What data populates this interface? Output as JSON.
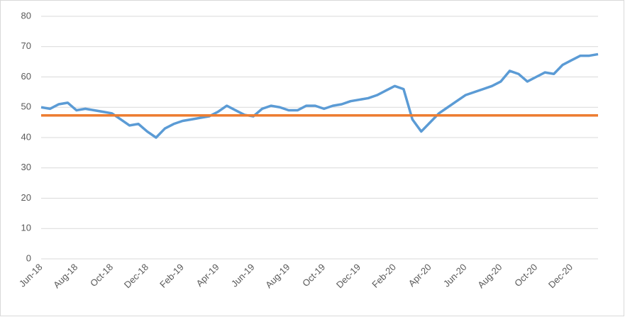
{
  "chart_data": {
    "type": "line",
    "categories": [
      "Jun-18",
      null,
      null,
      null,
      "Aug-18",
      null,
      null,
      null,
      "Oct-18",
      null,
      null,
      null,
      "Dec-18",
      null,
      null,
      null,
      "Feb-19",
      null,
      null,
      null,
      "Apr-19",
      null,
      null,
      null,
      "Jun-19",
      null,
      null,
      null,
      "Aug-19",
      null,
      null,
      null,
      "Oct-19",
      null,
      null,
      null,
      "Dec-19",
      null,
      null,
      null,
      "Feb-20",
      null,
      null,
      null,
      "Apr-20",
      null,
      null,
      null,
      "Jun-20",
      null,
      null,
      null,
      "Aug-20",
      null,
      null,
      null,
      "Oct-20",
      null,
      null,
      null,
      "Dec-20",
      null,
      null,
      null
    ],
    "series": [
      {
        "color": "#5b9bd5",
        "values": [
          50,
          49.5,
          51,
          51.5,
          49,
          49.5,
          49,
          48.5,
          48,
          46,
          44,
          44.5,
          42,
          40,
          43,
          44.5,
          45.5,
          46,
          46.5,
          47,
          48.5,
          50.5,
          49,
          47.5,
          47,
          49.5,
          50.5,
          50,
          49,
          49,
          50.5,
          50.5,
          49.5,
          50.5,
          51,
          52,
          52.5,
          53,
          54,
          55.5,
          57,
          56,
          46,
          42,
          45,
          48,
          50,
          52,
          54,
          55,
          56,
          57,
          58.5,
          62,
          61,
          58.5,
          60,
          61.5,
          61,
          64,
          65.5,
          67,
          67,
          67.5
        ]
      },
      {
        "color": "#ed7d31",
        "values": [
          47.3,
          47.3,
          47.3,
          47.3,
          47.3,
          47.3,
          47.3,
          47.3,
          47.3,
          47.3,
          47.3,
          47.3,
          47.3,
          47.3,
          47.3,
          47.3,
          47.3,
          47.3,
          47.3,
          47.3,
          47.3,
          47.3,
          47.3,
          47.3,
          47.3,
          47.3,
          47.3,
          47.3,
          47.3,
          47.3,
          47.3,
          47.3,
          47.3,
          47.3,
          47.3,
          47.3,
          47.3,
          47.3,
          47.3,
          47.3,
          47.3,
          47.3,
          47.3,
          47.3,
          47.3,
          47.3,
          47.3,
          47.3,
          47.3,
          47.3,
          47.3,
          47.3,
          47.3,
          47.3,
          47.3,
          47.3,
          47.3,
          47.3,
          47.3,
          47.3,
          47.3,
          47.3,
          47.3,
          47.3
        ]
      }
    ],
    "ylim": [
      0,
      80
    ],
    "yticks": [
      0,
      10,
      20,
      30,
      40,
      50,
      60,
      70,
      80
    ],
    "grid": true
  }
}
